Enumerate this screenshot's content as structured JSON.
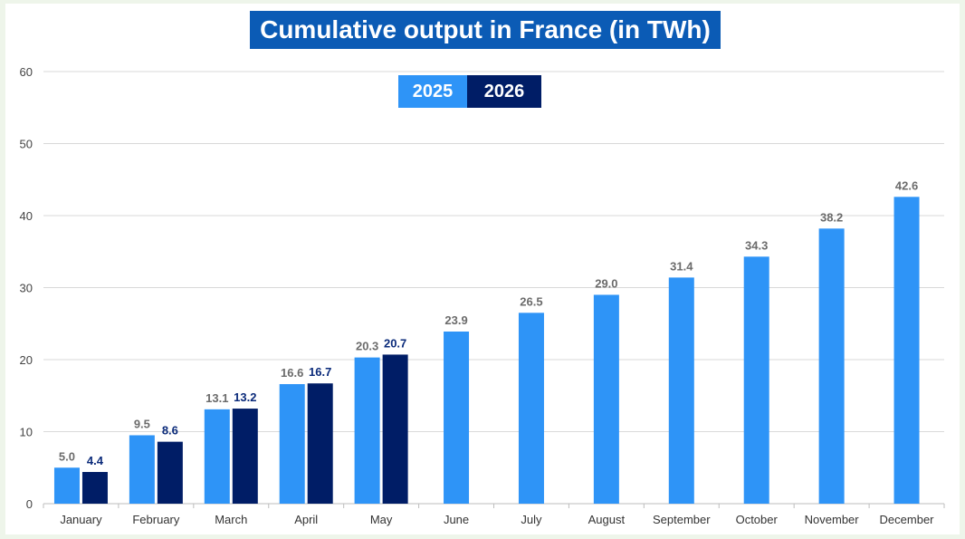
{
  "chart_data": {
    "type": "bar",
    "title": "Cumulative output in France (in TWh)",
    "categories": [
      "January",
      "February",
      "March",
      "April",
      "May",
      "June",
      "July",
      "August",
      "September",
      "October",
      "November",
      "December"
    ],
    "series": [
      {
        "name": "2025",
        "color": "#2e94f7",
        "label_color": "#6b6b6b",
        "values": [
          5.0,
          9.5,
          13.1,
          16.6,
          20.3,
          23.9,
          26.5,
          29.0,
          31.4,
          34.3,
          38.2,
          42.6
        ],
        "labels": [
          "5.0",
          "9.5",
          "13.1",
          "16.6",
          "20.3",
          "23.9",
          "26.5",
          "29.0",
          "31.4",
          "34.3",
          "38.2",
          "42.6"
        ]
      },
      {
        "name": "2026",
        "color": "#001d66",
        "label_color": "#0a2a7a",
        "values": [
          4.4,
          8.6,
          13.2,
          16.7,
          20.7,
          null,
          null,
          null,
          null,
          null,
          null,
          null
        ],
        "labels": [
          "4.4",
          "8.6",
          "13.2",
          "16.7",
          "20.7",
          null,
          null,
          null,
          null,
          null,
          null,
          null
        ]
      }
    ],
    "ylim": [
      0,
      60
    ],
    "yticks": [
      0,
      10,
      20,
      30,
      40,
      50,
      60
    ],
    "ytick_labels": [
      "0",
      "10",
      "20",
      "30",
      "40",
      "50",
      "60"
    ],
    "grid": true,
    "legend_position": "top-center"
  }
}
